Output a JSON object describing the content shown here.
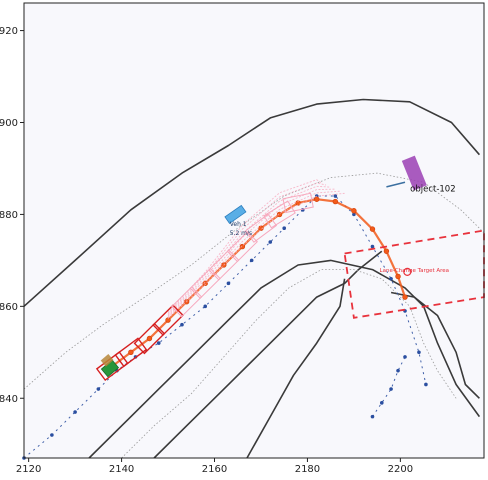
{
  "chart_data": {
    "type": "scatter",
    "title": "",
    "xlabel": "",
    "ylabel": "",
    "xlim": [
      2119,
      2218
    ],
    "ylim": [
      827,
      926
    ],
    "grid": false,
    "x_ticks": [
      "2120",
      "2140",
      "2160",
      "2180",
      "2200"
    ],
    "y_ticks": [
      "840",
      "860",
      "880",
      "900",
      "920"
    ],
    "colors": {
      "background": "#f8f8fc",
      "road_edge": "#3a3a3a",
      "centerline": "#999999",
      "ego_path": "#2b4fa0",
      "planned_path": "#f25a1a",
      "planned_path_dark": "#d2410a",
      "footprints": "#d61f1f",
      "pink_candidates": "#f7a8bd",
      "target_area": "#e8323c",
      "ego_vehicle": "#28963c",
      "vehicle_1": "#5aaee6",
      "object_102": "#9b3fb4"
    },
    "series": [
      {
        "name": "",
        "role": "ego-history",
        "x": [
          2119,
          2125,
          2130,
          2135,
          2139,
          2143,
          2148,
          2153,
          2158,
          2163,
          2168,
          2172,
          2175,
          2179,
          2182,
          2186,
          2190,
          2194,
          2198,
          2201,
          2204,
          2205.5
        ],
        "y": [
          827,
          832,
          837,
          842,
          846,
          849,
          852,
          856,
          860,
          865,
          870,
          874,
          877,
          881,
          884,
          884,
          880,
          873,
          866,
          859,
          850,
          843
        ]
      },
      {
        "name": "",
        "role": "ego-future",
        "x": [
          2194,
          2196,
          2198,
          2199.5,
          2201
        ],
        "y": [
          836,
          839,
          842,
          846,
          849
        ]
      },
      {
        "name": "",
        "role": "planned-path",
        "x": [
          2138,
          2142,
          2146,
          2150,
          2154,
          2158,
          2162,
          2166,
          2170,
          2174,
          2178,
          2182,
          2186,
          2190,
          2194,
          2197,
          2199.5,
          2201
        ],
        "y": [
          847,
          850,
          853,
          857,
          861,
          865,
          869,
          873,
          877,
          880,
          882.5,
          883.3,
          882.8,
          880.8,
          876.8,
          872,
          866.5,
          862
        ]
      }
    ],
    "annotations": [
      {
        "label": "Veh 1",
        "x": 2165,
        "y": 877.5
      },
      {
        "label": "5.2 m/s",
        "x": 2165,
        "y": 875.5
      },
      {
        "label": "object-102",
        "x": 2207,
        "y": 885
      },
      {
        "label": "Lane-Change Target Area",
        "x": 2203,
        "y": 867.5
      }
    ],
    "target_area_corners": [
      [
        2188,
        871.5
      ],
      [
        2218,
        876.5
      ],
      [
        2218,
        862
      ],
      [
        2190,
        857.5
      ]
    ]
  }
}
